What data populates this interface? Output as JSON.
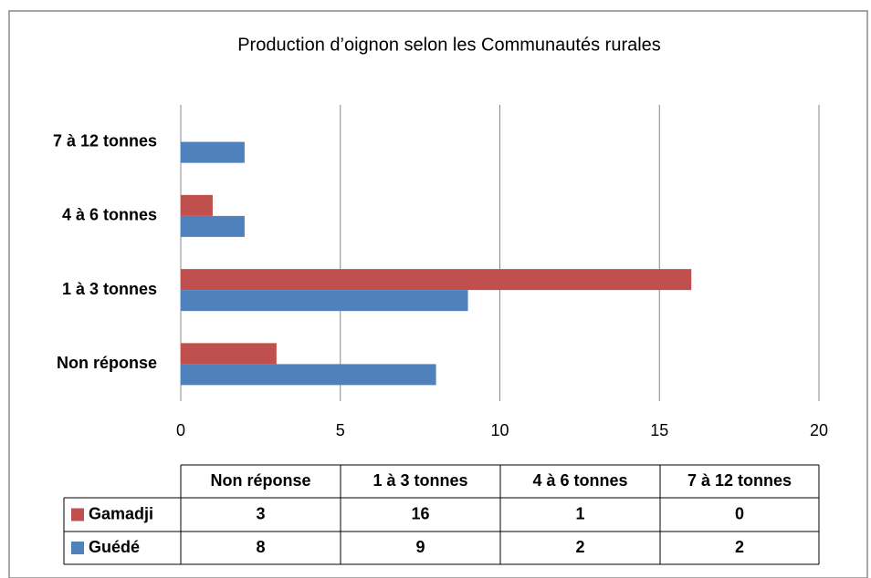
{
  "chart_data": {
    "type": "bar",
    "orientation": "horizontal",
    "title": "Production d’oignon selon les Communautés rurales",
    "categories": [
      "Non réponse",
      "1 à 3 tonnes",
      "4 à 6 tonnes",
      "7 à 12 tonnes"
    ],
    "series": [
      {
        "name": "Gamadji",
        "color": "#c0504d",
        "values": [
          3,
          16,
          1,
          0
        ]
      },
      {
        "name": "Guédé",
        "color": "#4f81bd",
        "values": [
          8,
          9,
          2,
          2
        ]
      }
    ],
    "xlim": [
      0,
      20
    ],
    "xticks": [
      0,
      5,
      10,
      15,
      20
    ],
    "grid": true,
    "data_table": true
  }
}
